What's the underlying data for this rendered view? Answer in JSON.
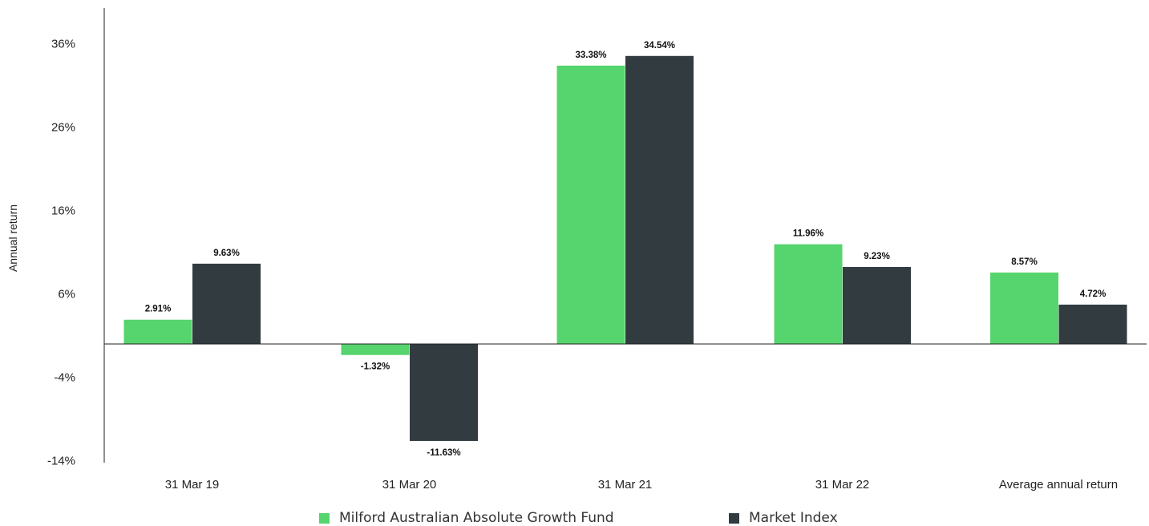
{
  "chart_data": {
    "type": "bar",
    "ylabel": "Annual return",
    "ylim": [
      -14,
      40
    ],
    "yticks": [
      "36%",
      "26%",
      "16%",
      "6%",
      "-4%",
      "-14%"
    ],
    "ytick_values": [
      36,
      26,
      16,
      6,
      -4,
      -14
    ],
    "categories": [
      "31 Mar 19",
      "31 Mar 20",
      "31 Mar 21",
      "31 Mar 22",
      "Average annual return"
    ],
    "series": [
      {
        "name": "Milford Australian Absolute Growth Fund",
        "color": "#56d46d",
        "values": [
          2.91,
          -1.32,
          33.38,
          11.96,
          8.57
        ],
        "labels": [
          "2.91%",
          "-1.32%",
          "33.38%",
          "11.96%",
          "8.57%"
        ]
      },
      {
        "name": "Market Index",
        "color": "#323b40",
        "values": [
          9.63,
          -11.63,
          34.54,
          9.23,
          4.72
        ],
        "labels": [
          "9.63%",
          "-11.63%",
          "34.54%",
          "9.23%",
          "4.72%"
        ]
      }
    ],
    "grid": false,
    "legend_position": "bottom-center"
  }
}
